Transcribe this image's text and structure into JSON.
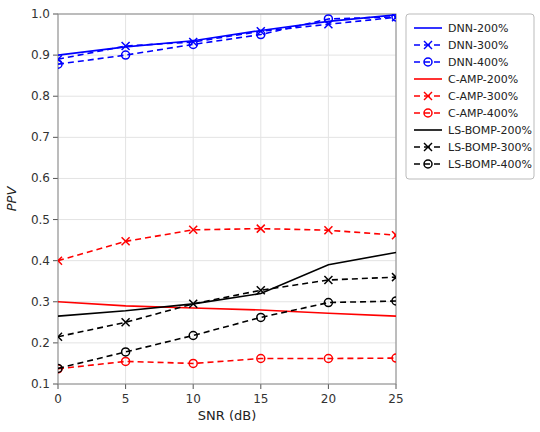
{
  "chart_data": {
    "type": "line",
    "x": [
      0,
      5,
      10,
      15,
      20,
      25
    ],
    "xlabel": "SNR (dB)",
    "ylabel": "PPV",
    "xlim": [
      0,
      25
    ],
    "ylim": [
      0.1,
      1.0
    ],
    "xticks": [
      0,
      5,
      10,
      15,
      20,
      25
    ],
    "yticks": [
      0.1,
      0.2,
      0.3,
      0.4,
      0.5,
      0.6,
      0.7,
      0.8,
      0.9,
      {
        "value": 1.0,
        "label": "1.0"
      }
    ],
    "grid": true,
    "legend": "right",
    "series": [
      {
        "name": "DNN-200%",
        "color": "#0000FF",
        "line_style": "solid",
        "marker": "none",
        "values": [
          0.9,
          0.92,
          0.935,
          0.96,
          0.982,
          0.998
        ]
      },
      {
        "name": "DNN-300%",
        "color": "#0000FF",
        "line_style": "dashed",
        "marker": "x",
        "values": [
          0.89,
          0.922,
          0.932,
          0.958,
          0.975,
          0.992
        ]
      },
      {
        "name": "DNN-400%",
        "color": "#0000FF",
        "line_style": "dashed",
        "marker": "circle",
        "values": [
          0.878,
          0.9,
          0.926,
          0.95,
          0.988,
          0.993
        ]
      },
      {
        "name": "C-AMP-200%",
        "color": "#FF0000",
        "line_style": "solid",
        "marker": "none",
        "values": [
          0.3,
          0.29,
          0.285,
          0.28,
          0.272,
          0.265
        ]
      },
      {
        "name": "C-AMP-300%",
        "color": "#FF0000",
        "line_style": "dashed",
        "marker": "x",
        "values": [
          0.4,
          0.447,
          0.475,
          0.478,
          0.474,
          0.462
        ]
      },
      {
        "name": "C-AMP-400%",
        "color": "#FF0000",
        "line_style": "dashed",
        "marker": "circle",
        "values": [
          0.137,
          0.155,
          0.15,
          0.162,
          0.162,
          0.163
        ]
      },
      {
        "name": "LS-BOMP-200%",
        "color": "#000000",
        "line_style": "solid",
        "marker": "none",
        "values": [
          0.265,
          0.278,
          0.295,
          0.32,
          0.39,
          0.42
        ]
      },
      {
        "name": "LS-BOMP-300%",
        "color": "#000000",
        "line_style": "dashed",
        "marker": "x",
        "values": [
          0.215,
          0.25,
          0.295,
          0.328,
          0.353,
          0.36
        ]
      },
      {
        "name": "LS-BOMP-400%",
        "color": "#000000",
        "line_style": "dashed",
        "marker": "circle",
        "values": [
          0.138,
          0.178,
          0.218,
          0.262,
          0.298,
          0.302
        ]
      }
    ]
  }
}
